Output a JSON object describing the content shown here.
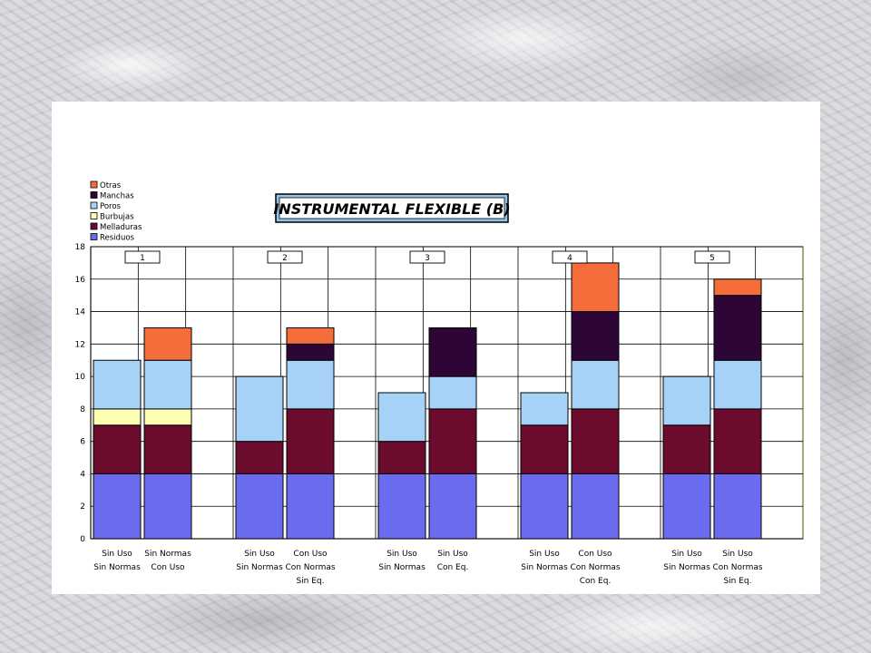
{
  "chart_data": {
    "type": "bar",
    "stacked": true,
    "title": "INSTRUMENTAL FLEXIBLE (B)",
    "ylim": [
      0,
      18
    ],
    "yticks": [
      0,
      2,
      4,
      6,
      8,
      10,
      12,
      14,
      16,
      18
    ],
    "grid": true,
    "legend_position": "top-left",
    "groups": [
      "1",
      "2",
      "3",
      "4",
      "5"
    ],
    "categories": [
      [
        "Sin Uso",
        "Sin Normas"
      ],
      [
        "Sin Normas",
        "Con Uso"
      ],
      [
        "Sin Uso",
        "Sin Normas"
      ],
      [
        "Con Uso",
        "Con Normas",
        "Sin Eq."
      ],
      [
        "Sin Uso",
        "Sin Normas"
      ],
      [
        "Sin Uso",
        "Con Eq."
      ],
      [
        "Sin Uso",
        "Sin Normas"
      ],
      [
        "Con Uso",
        "Con Normas",
        "Con Eq."
      ],
      [
        "Sin Uso",
        "Sin Normas"
      ],
      [
        "Sin Uso",
        "Con Normas",
        "Sin Eq."
      ]
    ],
    "series": [
      {
        "name": "Residuos",
        "color": "#6b6bf0",
        "values": [
          4,
          4,
          4,
          4,
          4,
          4,
          4,
          4,
          4,
          4
        ]
      },
      {
        "name": "Melladuras",
        "color": "#6b0c2e",
        "values": [
          3,
          3,
          2,
          4,
          2,
          4,
          3,
          4,
          3,
          4
        ]
      },
      {
        "name": "Burbujas",
        "color": "#ffffb3",
        "values": [
          1,
          1,
          0,
          0,
          0,
          0,
          0,
          0,
          0,
          0
        ]
      },
      {
        "name": "Poros",
        "color": "#a6d2f7",
        "values": [
          3,
          3,
          4,
          3,
          3,
          2,
          2,
          3,
          3,
          3
        ]
      },
      {
        "name": "Manchas",
        "color": "#2e0537",
        "values": [
          0,
          0,
          0,
          1,
          0,
          3,
          0,
          3,
          0,
          4
        ]
      },
      {
        "name": "Otras",
        "color": "#f46d3a",
        "values": [
          0,
          2,
          0,
          1,
          0,
          0,
          0,
          3,
          0,
          1
        ]
      }
    ],
    "legend_order": [
      "Otras",
      "Manchas",
      "Poros",
      "Burbujas",
      "Melladuras",
      "Residuos"
    ]
  }
}
